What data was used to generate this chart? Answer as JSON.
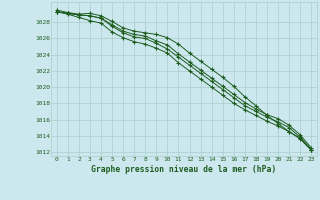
{
  "title": "Graphe pression niveau de la mer (hPa)",
  "bg_color": "#cce8ee",
  "grid_color": "#aacccc",
  "line_color": "#1e5c1e",
  "xlim": [
    -0.5,
    23.5
  ],
  "ylim": [
    1011.5,
    1030.5
  ],
  "yticks": [
    1012,
    1014,
    1016,
    1018,
    1020,
    1022,
    1024,
    1026,
    1028
  ],
  "series": [
    [
      1029.5,
      1029.2,
      1029.0,
      1029.1,
      1028.8,
      1028.1,
      1027.3,
      1026.9,
      1026.7,
      1026.5,
      1026.1,
      1025.3,
      1024.2,
      1023.2,
      1022.2,
      1021.2,
      1020.1,
      1018.8,
      1017.7,
      1016.5,
      1015.5,
      1014.5,
      1013.7,
      1012.3
    ],
    [
      1029.3,
      1029.1,
      1028.9,
      1028.8,
      1028.5,
      1027.7,
      1026.9,
      1026.5,
      1026.3,
      1025.7,
      1025.2,
      1024.1,
      1023.1,
      1022.1,
      1021.1,
      1020.1,
      1019.1,
      1018.1,
      1017.3,
      1016.6,
      1016.1,
      1015.3,
      1014.1,
      1012.5
    ],
    [
      1029.3,
      1029.1,
      1028.9,
      1028.8,
      1028.5,
      1027.5,
      1026.7,
      1026.2,
      1026.0,
      1025.4,
      1024.7,
      1023.7,
      1022.7,
      1021.7,
      1020.7,
      1019.7,
      1018.7,
      1017.7,
      1017.0,
      1016.3,
      1015.7,
      1015.0,
      1013.8,
      1012.3
    ],
    [
      1029.3,
      1029.0,
      1028.6,
      1028.2,
      1027.9,
      1026.8,
      1026.1,
      1025.6,
      1025.3,
      1024.8,
      1024.2,
      1023.0,
      1022.0,
      1021.0,
      1020.0,
      1019.0,
      1018.0,
      1017.2,
      1016.5,
      1015.8,
      1015.2,
      1014.5,
      1013.6,
      1012.2
    ]
  ]
}
